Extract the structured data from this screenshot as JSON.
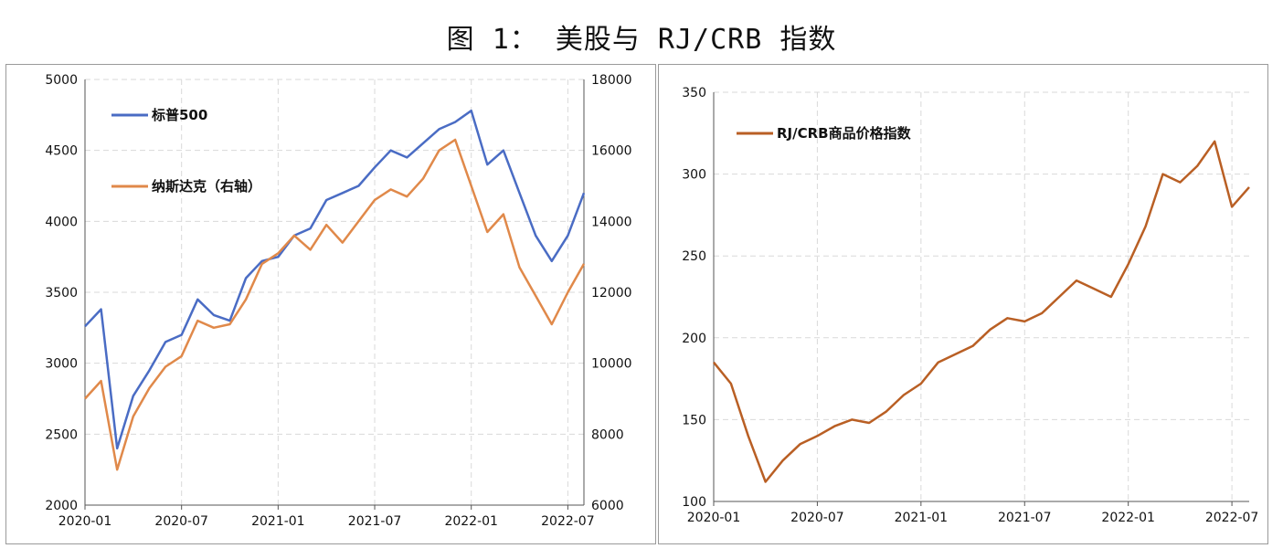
{
  "figure": {
    "title": "图 1： 美股与 RJ/CRB 指数"
  },
  "chart_data": [
    {
      "type": "line",
      "title": "",
      "legend": [
        "标普500",
        "纳斯达克（右轴）"
      ],
      "legend_placement": "top-left",
      "grid": true,
      "x_ticks": [
        "2020-01",
        "2020-07",
        "2021-01",
        "2021-07",
        "2022-01",
        "2022-07"
      ],
      "x_range": [
        "2020-01",
        "2022-08"
      ],
      "y_left": {
        "ylim": [
          2000,
          5000
        ],
        "ticks": [
          "2000",
          "2500",
          "3000",
          "3500",
          "4000",
          "4500",
          "5000"
        ]
      },
      "y_right": {
        "ylim": [
          6000,
          18000
        ],
        "ticks": [
          "6000",
          "8000",
          "10000",
          "12000",
          "14000",
          "16000",
          "18000"
        ]
      },
      "series": [
        {
          "name": "标普500",
          "axis": "left",
          "color": "#4a6cc4",
          "x": [
            "2020-01",
            "2020-02",
            "2020-03",
            "2020-04",
            "2020-05",
            "2020-06",
            "2020-07",
            "2020-08",
            "2020-09",
            "2020-10",
            "2020-11",
            "2020-12",
            "2021-01",
            "2021-02",
            "2021-03",
            "2021-04",
            "2021-05",
            "2021-06",
            "2021-07",
            "2021-08",
            "2021-09",
            "2021-10",
            "2021-11",
            "2021-12",
            "2022-01",
            "2022-02",
            "2022-03",
            "2022-04",
            "2022-05",
            "2022-06",
            "2022-07",
            "2022-08"
          ],
          "values": [
            3260,
            3380,
            2400,
            2770,
            2950,
            3150,
            3200,
            3450,
            3340,
            3300,
            3600,
            3720,
            3750,
            3900,
            3950,
            4150,
            4200,
            4250,
            4380,
            4500,
            4450,
            4550,
            4650,
            4700,
            4780,
            4400,
            4500,
            4200,
            3900,
            3720,
            3900,
            4200
          ]
        },
        {
          "name": "纳斯达克（右轴）",
          "axis": "right",
          "color": "#e0894a",
          "x": [
            "2020-01",
            "2020-02",
            "2020-03",
            "2020-04",
            "2020-05",
            "2020-06",
            "2020-07",
            "2020-08",
            "2020-09",
            "2020-10",
            "2020-11",
            "2020-12",
            "2021-01",
            "2021-02",
            "2021-03",
            "2021-04",
            "2021-05",
            "2021-06",
            "2021-07",
            "2021-08",
            "2021-09",
            "2021-10",
            "2021-11",
            "2021-12",
            "2022-01",
            "2022-02",
            "2022-03",
            "2022-04",
            "2022-05",
            "2022-06",
            "2022-07",
            "2022-08"
          ],
          "values": [
            9000,
            9500,
            7000,
            8500,
            9300,
            9900,
            10200,
            11200,
            11000,
            11100,
            11800,
            12800,
            13100,
            13600,
            13200,
            13900,
            13400,
            14000,
            14600,
            14900,
            14700,
            15200,
            16000,
            16300,
            15000,
            13700,
            14200,
            12700,
            11900,
            11100,
            12000,
            12800
          ]
        }
      ]
    },
    {
      "type": "line",
      "title": "",
      "legend": [
        "RJ/CRB商品价格指数"
      ],
      "legend_placement": "top-left",
      "grid": true,
      "x_ticks": [
        "2020-01",
        "2020-07",
        "2021-01",
        "2021-07",
        "2022-01",
        "2022-07"
      ],
      "x_range": [
        "2020-01",
        "2022-08"
      ],
      "y_left": {
        "ylim": [
          100,
          350
        ],
        "ticks": [
          "100",
          "150",
          "200",
          "250",
          "300",
          "350"
        ]
      },
      "series": [
        {
          "name": "RJ/CRB商品价格指数",
          "axis": "left",
          "color": "#b95f24",
          "x": [
            "2020-01",
            "2020-02",
            "2020-03",
            "2020-04",
            "2020-05",
            "2020-06",
            "2020-07",
            "2020-08",
            "2020-09",
            "2020-10",
            "2020-11",
            "2020-12",
            "2021-01",
            "2021-02",
            "2021-03",
            "2021-04",
            "2021-05",
            "2021-06",
            "2021-07",
            "2021-08",
            "2021-09",
            "2021-10",
            "2021-11",
            "2021-12",
            "2022-01",
            "2022-02",
            "2022-03",
            "2022-04",
            "2022-05",
            "2022-06",
            "2022-07",
            "2022-08"
          ],
          "values": [
            185,
            172,
            140,
            112,
            125,
            135,
            140,
            146,
            150,
            148,
            155,
            165,
            172,
            185,
            190,
            195,
            205,
            212,
            210,
            215,
            225,
            235,
            230,
            225,
            245,
            268,
            300,
            295,
            305,
            320,
            280,
            292
          ]
        }
      ]
    }
  ]
}
